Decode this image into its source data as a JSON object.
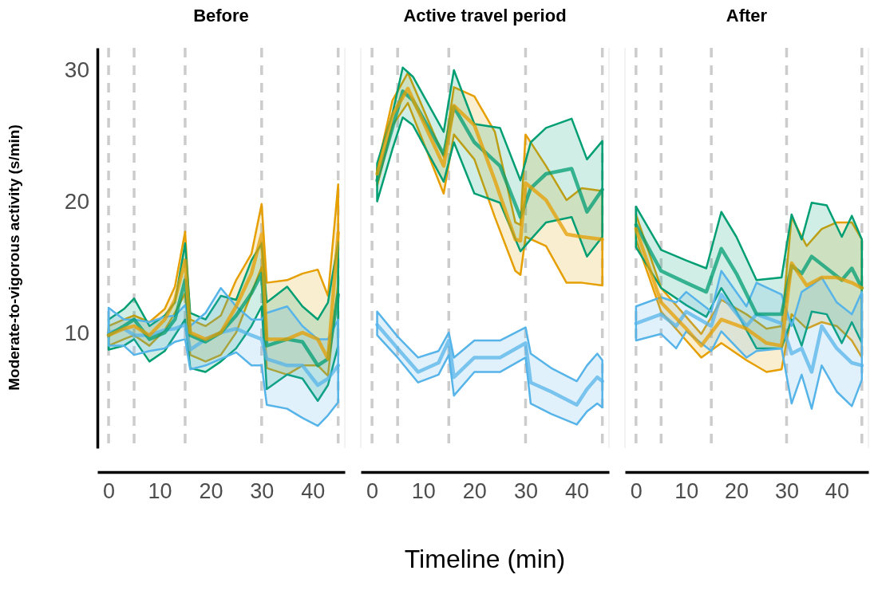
{
  "chart_data": [
    {
      "type": "line",
      "title": "Before",
      "ylabel": "Moderate-to-vigorous activity (s/min)",
      "xlim": [
        -2.2,
        46.3
      ],
      "ylim": [
        1.2,
        31.7
      ],
      "xticks": [
        0,
        10,
        20,
        30,
        40
      ],
      "yticks": [
        10,
        20,
        30
      ],
      "ref_lines": [
        {
          "axis": "x",
          "value": 0,
          "color": "#cccccc",
          "line_style": "dashed"
        },
        {
          "axis": "x",
          "value": 5,
          "color": "#cccccc",
          "line_style": "dashed"
        },
        {
          "axis": "x",
          "value": 15,
          "color": "#cccccc",
          "line_style": "dashed"
        },
        {
          "axis": "x",
          "value": 30,
          "color": "#cccccc",
          "line_style": "dashed"
        },
        {
          "axis": "x",
          "value": 45,
          "color": "#cccccc",
          "line_style": "dashed"
        }
      ],
      "series": [
        {
          "color": "#e69f00",
          "x": [
            0,
            3,
            5,
            8,
            11,
            13,
            15,
            16,
            19,
            22,
            25,
            28,
            30,
            31,
            35,
            38,
            41,
            43,
            45
          ],
          "values": [
            9.8,
            10.3,
            10.5,
            9.8,
            11,
            12.5,
            15.5,
            10,
            9.5,
            10,
            12,
            14.5,
            17.5,
            9.5,
            9.5,
            10,
            9.5,
            8,
            17.6
          ],
          "lower": [
            9,
            9.5,
            9.8,
            9,
            10.2,
            11.5,
            13,
            8.3,
            7.8,
            8.3,
            10,
            13,
            15,
            7.3,
            6.8,
            7.5,
            7.5,
            6.7,
            13.8
          ],
          "upper": [
            10.5,
            11,
            11.3,
            10.8,
            11.8,
            13.5,
            17.7,
            11,
            10.5,
            11.3,
            14,
            16,
            19.8,
            13.8,
            14,
            14.5,
            14.8,
            12.8,
            21.3
          ]
        },
        {
          "color": "#009e73",
          "x": [
            0,
            3,
            5,
            8,
            11,
            13,
            15,
            16,
            19,
            22,
            25,
            28,
            30,
            31,
            35,
            38,
            41,
            43,
            45
          ],
          "values": [
            9.8,
            10.5,
            11,
            9.5,
            10,
            11,
            14,
            9.8,
            9.3,
            10,
            11.3,
            13,
            14.5,
            9,
            9.5,
            9.3,
            7.5,
            8,
            12.9
          ],
          "lower": [
            8.7,
            9,
            9.5,
            7.8,
            8.6,
            9.8,
            11,
            7.3,
            7,
            7.8,
            8.8,
            10.5,
            12,
            5.7,
            6.8,
            6.5,
            4.8,
            6,
            9
          ],
          "upper": [
            11,
            11.8,
            12.6,
            10.5,
            11.3,
            12.3,
            16.8,
            11.5,
            11,
            12.8,
            12.5,
            15.5,
            16.8,
            12.3,
            13.5,
            12,
            11,
            12.3,
            16.9
          ]
        },
        {
          "color": "#56b4e9",
          "x": [
            0,
            3,
            5,
            8,
            11,
            13,
            15,
            16,
            19,
            22,
            25,
            28,
            30,
            31,
            35,
            38,
            41,
            43,
            45
          ],
          "values": [
            10,
            10.3,
            9.8,
            9.8,
            10.2,
            10.3,
            10.6,
            8.7,
            9.5,
            10,
            10.3,
            9.8,
            9.5,
            8,
            7.5,
            7.5,
            6,
            6.5,
            7.5
          ],
          "lower": [
            9,
            9,
            8.3,
            8.6,
            8.8,
            9.3,
            9.5,
            7.2,
            7.5,
            8,
            8.5,
            7.5,
            7.5,
            4.5,
            4.2,
            3.5,
            2.9,
            3.7,
            4.7
          ],
          "upper": [
            11.9,
            11,
            11,
            10.8,
            11.2,
            11.3,
            12.1,
            10.5,
            11.5,
            13.4,
            12,
            11,
            11,
            11.5,
            12,
            10.5,
            9.5,
            9.5,
            11
          ]
        }
      ]
    },
    {
      "type": "line",
      "title": "Active travel period",
      "xlabel": "Timeline (min)",
      "xlim": [
        -2.2,
        46.3
      ],
      "ylim": [
        1.2,
        31.7
      ],
      "xticks": [
        0,
        10,
        20,
        30,
        40
      ],
      "tick_labels": "x",
      "ref_lines": [
        {
          "axis": "x",
          "value": 0,
          "color": "#cccccc",
          "line_style": "dashed"
        },
        {
          "axis": "x",
          "value": 5,
          "color": "#cccccc",
          "line_style": "dashed"
        },
        {
          "axis": "x",
          "value": 15,
          "color": "#cccccc",
          "line_style": "dashed"
        },
        {
          "axis": "x",
          "value": 30,
          "color": "#cccccc",
          "line_style": "dashed"
        },
        {
          "axis": "x",
          "value": 45,
          "color": "#cccccc",
          "line_style": "dashed"
        }
      ],
      "series": [
        {
          "color": "#e69f00",
          "x": [
            1,
            4,
            7,
            14,
            16,
            20,
            24,
            28,
            29,
            30,
            34,
            38,
            41,
            45
          ],
          "values": [
            22.1,
            26.6,
            28.6,
            22.7,
            27.3,
            25.8,
            21.6,
            17.1,
            17,
            21.4,
            20.1,
            17.5,
            17.3,
            17.1
          ],
          "lower": [
            21.2,
            25.8,
            27.5,
            20.6,
            25.1,
            23.2,
            18.8,
            14.7,
            14.4,
            17.3,
            16.6,
            13.8,
            13.8,
            13.6
          ],
          "upper": [
            22.5,
            27.7,
            29.8,
            23.4,
            28.7,
            28,
            25.3,
            18.4,
            18.2,
            25.1,
            22.7,
            20.1,
            21,
            20.8
          ]
        },
        {
          "color": "#009e73",
          "x": [
            1,
            4,
            6,
            8,
            14,
            16,
            20,
            25,
            29,
            31,
            34,
            39,
            42,
            45
          ],
          "values": [
            21.6,
            25.6,
            28.4,
            27.7,
            23.6,
            27.2,
            24.5,
            22.7,
            18.8,
            21,
            22.1,
            22.5,
            19.2,
            20.9
          ],
          "lower": [
            20,
            24,
            26.4,
            25.8,
            21.5,
            24.5,
            20.6,
            19.9,
            16.2,
            17.1,
            18.4,
            18.8,
            15.8,
            17.3
          ],
          "upper": [
            22.9,
            26.7,
            30.2,
            29.5,
            25.3,
            30,
            25.9,
            25.6,
            21.6,
            24.5,
            25.6,
            26.3,
            23.2,
            24.6
          ]
        },
        {
          "color": "#56b4e9",
          "x": [
            1,
            5,
            9,
            13,
            15,
            16,
            20,
            25,
            30,
            31,
            35,
            40,
            42,
            44,
            45
          ],
          "values": [
            10.6,
            8.8,
            7,
            7.7,
            9.4,
            6.6,
            8.1,
            8.1,
            9.2,
            6.2,
            5.5,
            4.5,
            5.7,
            6.6,
            6.3
          ],
          "lower": [
            9.8,
            8.1,
            6.2,
            6.8,
            8.3,
            5.2,
            7,
            7,
            8.1,
            4.6,
            3.8,
            3,
            4,
            4.6,
            4.3
          ],
          "upper": [
            11.6,
            9.7,
            8.1,
            8.6,
            10,
            8.1,
            9.4,
            9.4,
            10.4,
            8.4,
            7.3,
            6.3,
            7.5,
            8.4,
            7.9
          ]
        }
      ]
    },
    {
      "type": "line",
      "title": "After",
      "xlim": [
        -2.2,
        46.3
      ],
      "ylim": [
        1.2,
        31.7
      ],
      "xticks": [
        0,
        10,
        20,
        30,
        40
      ],
      "tick_labels": "x",
      "ref_lines": [
        {
          "axis": "x",
          "value": 0,
          "color": "#cccccc",
          "line_style": "dashed"
        },
        {
          "axis": "x",
          "value": 5,
          "color": "#cccccc",
          "line_style": "dashed"
        },
        {
          "axis": "x",
          "value": 15,
          "color": "#cccccc",
          "line_style": "dashed"
        },
        {
          "axis": "x",
          "value": 30,
          "color": "#cccccc",
          "line_style": "dashed"
        },
        {
          "axis": "x",
          "value": 45,
          "color": "#cccccc",
          "line_style": "dashed"
        }
      ],
      "series": [
        {
          "color": "#e69f00",
          "x": [
            0,
            5,
            10,
            13,
            17,
            22,
            26,
            29,
            31,
            34,
            37,
            40,
            43,
            45
          ],
          "values": [
            17.9,
            12.3,
            10.3,
            9,
            11,
            10.3,
            9.2,
            9,
            15.3,
            13.6,
            14.2,
            14.2,
            13.8,
            13.4
          ],
          "lower": [
            17.1,
            11.6,
            9.4,
            8.1,
            9.2,
            7.9,
            7,
            7.2,
            11.4,
            10.3,
            10.8,
            10.5,
            9.4,
            8.1
          ],
          "upper": [
            19,
            13.4,
            11.2,
            9.9,
            12.5,
            11.4,
            10.3,
            10.5,
            18.8,
            16.6,
            17.9,
            18.4,
            18.4,
            17.1
          ]
        },
        {
          "color": "#009e73",
          "x": [
            0,
            5,
            10,
            14,
            17,
            20,
            24,
            29,
            31,
            33,
            35,
            38,
            41,
            43,
            45
          ],
          "values": [
            18.2,
            14.7,
            13.8,
            13.1,
            16.4,
            14.5,
            11.4,
            11.4,
            15.1,
            14.5,
            15.8,
            14.9,
            14,
            14.9,
            13.4
          ],
          "lower": [
            16.5,
            13.4,
            12.1,
            11.2,
            13.4,
            11.6,
            8.8,
            8.8,
            11,
            9,
            11.6,
            11.4,
            9.2,
            10.8,
            9.2
          ],
          "upper": [
            19.6,
            16.3,
            15.5,
            14.9,
            19.2,
            17.3,
            14,
            14.2,
            19,
            17.1,
            19.9,
            19.7,
            17.3,
            18.9,
            17.1
          ]
        },
        {
          "color": "#56b4e9",
          "x": [
            0,
            5,
            8,
            10,
            15,
            17,
            22,
            24,
            29,
            31,
            33,
            35,
            37,
            40,
            43,
            45
          ],
          "values": [
            10.7,
            11.4,
            10.5,
            11.6,
            10.5,
            12.9,
            10.5,
            11.4,
            10.7,
            8.4,
            8.8,
            7,
            10.5,
            8.8,
            7.7,
            7.5
          ],
          "lower": [
            9.4,
            9.9,
            8.8,
            10.1,
            8.6,
            10.1,
            8.1,
            8.6,
            8.8,
            4.6,
            6.8,
            4.2,
            7.5,
            5.5,
            4.4,
            6.4
          ],
          "upper": [
            12,
            12.7,
            12.3,
            13.1,
            11.6,
            14.7,
            12,
            13.8,
            12.9,
            10.5,
            13.1,
            13.6,
            14.2,
            12.3,
            11.4,
            13.1
          ]
        }
      ]
    }
  ]
}
